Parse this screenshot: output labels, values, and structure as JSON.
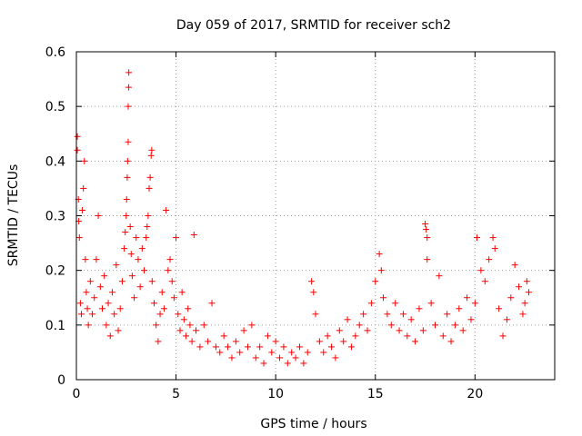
{
  "chart_data": {
    "type": "scatter",
    "title": "Day 059 of 2017, SRMTID for receiver sch2",
    "xlabel": "GPS time / hours",
    "ylabel": "SRMTID / TECUs",
    "xlim": [
      0,
      24
    ],
    "ylim": [
      0,
      0.6
    ],
    "x_ticks": [
      0,
      5,
      10,
      15,
      20
    ],
    "x_tick_labels": [
      "0",
      "5",
      "10",
      "15",
      "20"
    ],
    "y_ticks": [
      0,
      0.1,
      0.2,
      0.3,
      0.4,
      0.5,
      0.6
    ],
    "y_tick_labels": [
      "0",
      "0.1",
      "0.2",
      "0.3",
      "0.4",
      "0.5",
      "0.6"
    ],
    "grid": true,
    "marker": "+",
    "series": [
      {
        "name": "SRMTID",
        "color": "#ff0000",
        "points": [
          [
            0.05,
            0.445
          ],
          [
            0.05,
            0.42
          ],
          [
            0.1,
            0.33
          ],
          [
            0.12,
            0.29
          ],
          [
            0.15,
            0.26
          ],
          [
            0.2,
            0.14
          ],
          [
            0.25,
            0.12
          ],
          [
            0.3,
            0.31
          ],
          [
            0.35,
            0.35
          ],
          [
            0.4,
            0.4
          ],
          [
            0.45,
            0.22
          ],
          [
            0.5,
            0.16
          ],
          [
            0.55,
            0.13
          ],
          [
            0.6,
            0.1
          ],
          [
            0.7,
            0.18
          ],
          [
            0.8,
            0.12
          ],
          [
            0.9,
            0.15
          ],
          [
            1.0,
            0.22
          ],
          [
            1.1,
            0.3
          ],
          [
            1.2,
            0.17
          ],
          [
            1.3,
            0.13
          ],
          [
            1.4,
            0.19
          ],
          [
            1.5,
            0.1
          ],
          [
            1.6,
            0.14
          ],
          [
            1.7,
            0.08
          ],
          [
            1.8,
            0.16
          ],
          [
            1.9,
            0.12
          ],
          [
            2.0,
            0.21
          ],
          [
            2.1,
            0.09
          ],
          [
            2.2,
            0.13
          ],
          [
            2.3,
            0.18
          ],
          [
            2.4,
            0.24
          ],
          [
            2.45,
            0.27
          ],
          [
            2.5,
            0.3
          ],
          [
            2.52,
            0.33
          ],
          [
            2.55,
            0.37
          ],
          [
            2.57,
            0.4
          ],
          [
            2.6,
            0.435
          ],
          [
            2.6,
            0.5
          ],
          [
            2.62,
            0.535
          ],
          [
            2.63,
            0.562
          ],
          [
            2.7,
            0.28
          ],
          [
            2.75,
            0.23
          ],
          [
            2.8,
            0.19
          ],
          [
            2.9,
            0.15
          ],
          [
            3.0,
            0.26
          ],
          [
            3.1,
            0.22
          ],
          [
            3.2,
            0.17
          ],
          [
            3.3,
            0.24
          ],
          [
            3.4,
            0.2
          ],
          [
            3.5,
            0.26
          ],
          [
            3.55,
            0.28
          ],
          [
            3.6,
            0.3
          ],
          [
            3.65,
            0.35
          ],
          [
            3.7,
            0.37
          ],
          [
            3.75,
            0.41
          ],
          [
            3.78,
            0.42
          ],
          [
            3.8,
            0.18
          ],
          [
            3.9,
            0.14
          ],
          [
            4.0,
            0.1
          ],
          [
            4.1,
            0.07
          ],
          [
            4.2,
            0.12
          ],
          [
            4.3,
            0.16
          ],
          [
            4.4,
            0.13
          ],
          [
            4.5,
            0.31
          ],
          [
            4.6,
            0.2
          ],
          [
            4.7,
            0.22
          ],
          [
            4.8,
            0.18
          ],
          [
            4.9,
            0.15
          ],
          [
            5.0,
            0.26
          ],
          [
            5.1,
            0.12
          ],
          [
            5.2,
            0.09
          ],
          [
            5.3,
            0.16
          ],
          [
            5.4,
            0.11
          ],
          [
            5.5,
            0.08
          ],
          [
            5.6,
            0.13
          ],
          [
            5.7,
            0.1
          ],
          [
            5.8,
            0.07
          ],
          [
            5.9,
            0.265
          ],
          [
            6.0,
            0.09
          ],
          [
            6.2,
            0.06
          ],
          [
            6.4,
            0.1
          ],
          [
            6.6,
            0.07
          ],
          [
            6.8,
            0.14
          ],
          [
            7.0,
            0.06
          ],
          [
            7.2,
            0.05
          ],
          [
            7.4,
            0.08
          ],
          [
            7.6,
            0.06
          ],
          [
            7.8,
            0.04
          ],
          [
            8.0,
            0.07
          ],
          [
            8.2,
            0.05
          ],
          [
            8.4,
            0.09
          ],
          [
            8.6,
            0.06
          ],
          [
            8.8,
            0.1
          ],
          [
            9.0,
            0.04
          ],
          [
            9.2,
            0.06
          ],
          [
            9.4,
            0.03
          ],
          [
            9.6,
            0.08
          ],
          [
            9.8,
            0.05
          ],
          [
            10.0,
            0.07
          ],
          [
            10.2,
            0.04
          ],
          [
            10.4,
            0.06
          ],
          [
            10.6,
            0.03
          ],
          [
            10.8,
            0.05
          ],
          [
            11.0,
            0.04
          ],
          [
            11.2,
            0.06
          ],
          [
            11.4,
            0.03
          ],
          [
            11.6,
            0.05
          ],
          [
            11.8,
            0.18
          ],
          [
            11.9,
            0.16
          ],
          [
            12.0,
            0.12
          ],
          [
            12.2,
            0.07
          ],
          [
            12.4,
            0.05
          ],
          [
            12.6,
            0.08
          ],
          [
            12.8,
            0.06
          ],
          [
            13.0,
            0.04
          ],
          [
            13.2,
            0.09
          ],
          [
            13.4,
            0.07
          ],
          [
            13.6,
            0.11
          ],
          [
            13.8,
            0.06
          ],
          [
            14.0,
            0.08
          ],
          [
            14.2,
            0.1
          ],
          [
            14.4,
            0.12
          ],
          [
            14.6,
            0.09
          ],
          [
            14.8,
            0.14
          ],
          [
            15.0,
            0.18
          ],
          [
            15.2,
            0.23
          ],
          [
            15.3,
            0.2
          ],
          [
            15.4,
            0.15
          ],
          [
            15.6,
            0.12
          ],
          [
            15.8,
            0.1
          ],
          [
            16.0,
            0.14
          ],
          [
            16.2,
            0.09
          ],
          [
            16.4,
            0.12
          ],
          [
            16.6,
            0.08
          ],
          [
            16.8,
            0.11
          ],
          [
            17.0,
            0.07
          ],
          [
            17.2,
            0.13
          ],
          [
            17.4,
            0.09
          ],
          [
            17.5,
            0.285
          ],
          [
            17.55,
            0.275
          ],
          [
            17.6,
            0.26
          ],
          [
            17.6,
            0.22
          ],
          [
            17.8,
            0.14
          ],
          [
            18.0,
            0.1
          ],
          [
            18.2,
            0.19
          ],
          [
            18.4,
            0.08
          ],
          [
            18.6,
            0.12
          ],
          [
            18.8,
            0.07
          ],
          [
            19.0,
            0.1
          ],
          [
            19.2,
            0.13
          ],
          [
            19.4,
            0.09
          ],
          [
            19.6,
            0.15
          ],
          [
            19.8,
            0.11
          ],
          [
            20.0,
            0.14
          ],
          [
            20.1,
            0.26
          ],
          [
            20.3,
            0.2
          ],
          [
            20.5,
            0.18
          ],
          [
            20.7,
            0.22
          ],
          [
            20.9,
            0.26
          ],
          [
            21.0,
            0.24
          ],
          [
            21.2,
            0.13
          ],
          [
            21.4,
            0.08
          ],
          [
            21.6,
            0.11
          ],
          [
            21.8,
            0.15
          ],
          [
            22.0,
            0.21
          ],
          [
            22.2,
            0.17
          ],
          [
            22.4,
            0.12
          ],
          [
            22.5,
            0.14
          ],
          [
            22.6,
            0.18
          ],
          [
            22.7,
            0.16
          ]
        ]
      }
    ]
  }
}
